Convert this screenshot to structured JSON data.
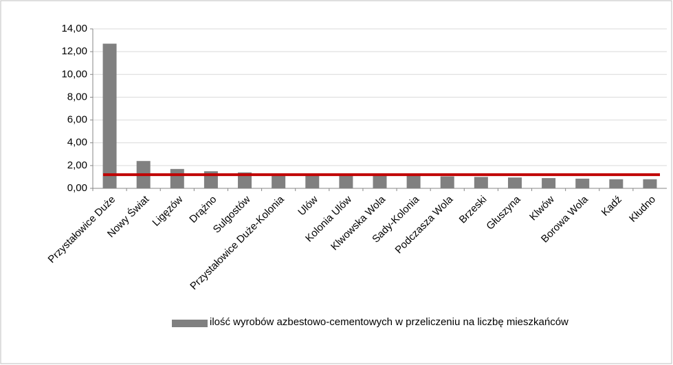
{
  "chart_data": {
    "type": "bar",
    "categories": [
      "Przystałowice Duże",
      "Nowy Świat",
      "Ligęzów",
      "Drążno",
      "Sulgostów",
      "Przystałowice Duże-Kolonia",
      "Ulów",
      "Kolonia Ulów",
      "Klwowska Wola",
      "Sady-Kolonia",
      "Podczasza Wola",
      "Brzeski",
      "Głuszyna",
      "Klwów",
      "Borowa Wola",
      "Kadź",
      "Kłudno"
    ],
    "series": [
      {
        "name": "ilość wyrobów azbestowo-cementowych w przeliczeniu na liczbę mieszkańców",
        "color": "#808080",
        "values": [
          12.7,
          2.4,
          1.7,
          1.5,
          1.4,
          1.2,
          1.15,
          1.15,
          1.1,
          1.1,
          1.05,
          1.0,
          0.95,
          0.9,
          0.85,
          0.8,
          0.8
        ]
      }
    ],
    "reference_line": {
      "value": 1.2,
      "color": "#c00000"
    },
    "ylim": [
      0,
      14
    ],
    "yticks": [
      {
        "value": 0,
        "label": "0,00"
      },
      {
        "value": 2,
        "label": "2,00"
      },
      {
        "value": 4,
        "label": "4,00"
      },
      {
        "value": 6,
        "label": "6,00"
      },
      {
        "value": 8,
        "label": "8,00"
      },
      {
        "value": 10,
        "label": "10,00"
      },
      {
        "value": 12,
        "label": "12,00"
      },
      {
        "value": 14,
        "label": "14,00"
      }
    ],
    "grid": true,
    "legend": "bottom"
  }
}
